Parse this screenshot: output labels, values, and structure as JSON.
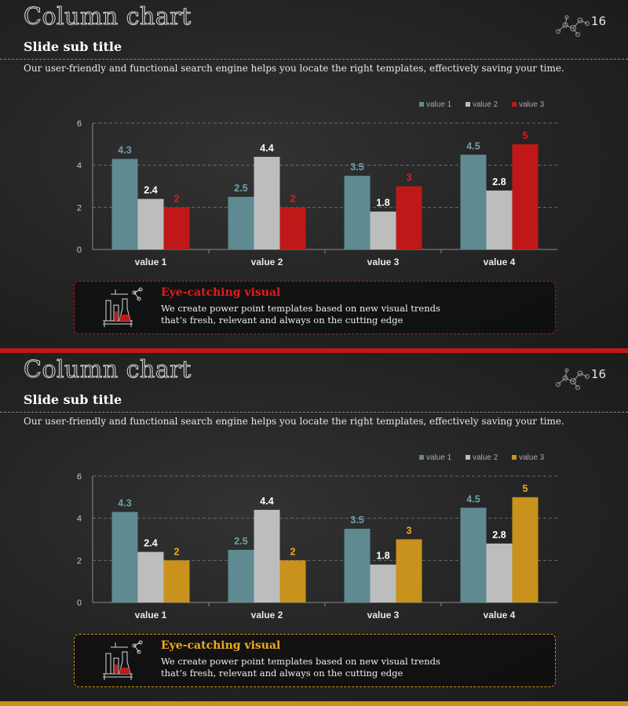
{
  "slides": [
    {
      "title": "Column chart",
      "page_number": "16",
      "subtitle": "Slide sub title",
      "description": "Our user-friendly and functional search engine helps  you locate the right templates, effectively saving your time.",
      "callout": {
        "title": "Eye-catching visual",
        "line1": "We create power point templates based on new visual trends",
        "line2": "that’s fresh, relevant and always on the cutting edge"
      },
      "accent": "#c01818"
    },
    {
      "title": "Column chart",
      "page_number": "16",
      "subtitle": "Slide sub title",
      "description": "Our user-friendly and functional search engine helps  you locate the right templates, effectively saving your time.",
      "callout": {
        "title": "Eye-catching visual",
        "line1": "We create power point templates based on new visual trends",
        "line2": "that’s fresh, relevant and always on the cutting edge"
      },
      "accent": "#c8921c"
    }
  ],
  "chart_data": [
    {
      "type": "bar",
      "categories": [
        "value 1",
        "value 2",
        "value 3",
        "value 4"
      ],
      "series": [
        {
          "name": "value 1",
          "values": [
            4.3,
            2.5,
            3.5,
            4.5
          ],
          "color": "#5f8a92",
          "label_color": "#6fa0aa"
        },
        {
          "name": "value 2",
          "values": [
            2.4,
            4.4,
            1.8,
            2.8
          ],
          "color": "#bdbdbd",
          "label_color": "#ffffff"
        },
        {
          "name": "value 3",
          "values": [
            2,
            2,
            3,
            5
          ],
          "color": "#c01818",
          "label_color": "#e21c1c"
        }
      ],
      "ylim": [
        0,
        6
      ],
      "yticks": [
        0,
        2,
        4,
        6
      ],
      "grid": true,
      "legend": "top-right"
    },
    {
      "type": "bar",
      "categories": [
        "value 1",
        "value 2",
        "value 3",
        "value 4"
      ],
      "series": [
        {
          "name": "value 1",
          "values": [
            4.3,
            2.5,
            3.5,
            4.5
          ],
          "color": "#5f8a92",
          "label_color": "#6fa0aa"
        },
        {
          "name": "value 2",
          "values": [
            2.4,
            4.4,
            1.8,
            2.8
          ],
          "color": "#bdbdbd",
          "label_color": "#ffffff"
        },
        {
          "name": "value 3",
          "values": [
            2,
            2,
            3,
            5
          ],
          "color": "#c8921c",
          "label_color": "#f0aa20"
        }
      ],
      "ylim": [
        0,
        6
      ],
      "yticks": [
        0,
        2,
        4,
        6
      ],
      "grid": true,
      "legend": "top-right"
    }
  ]
}
